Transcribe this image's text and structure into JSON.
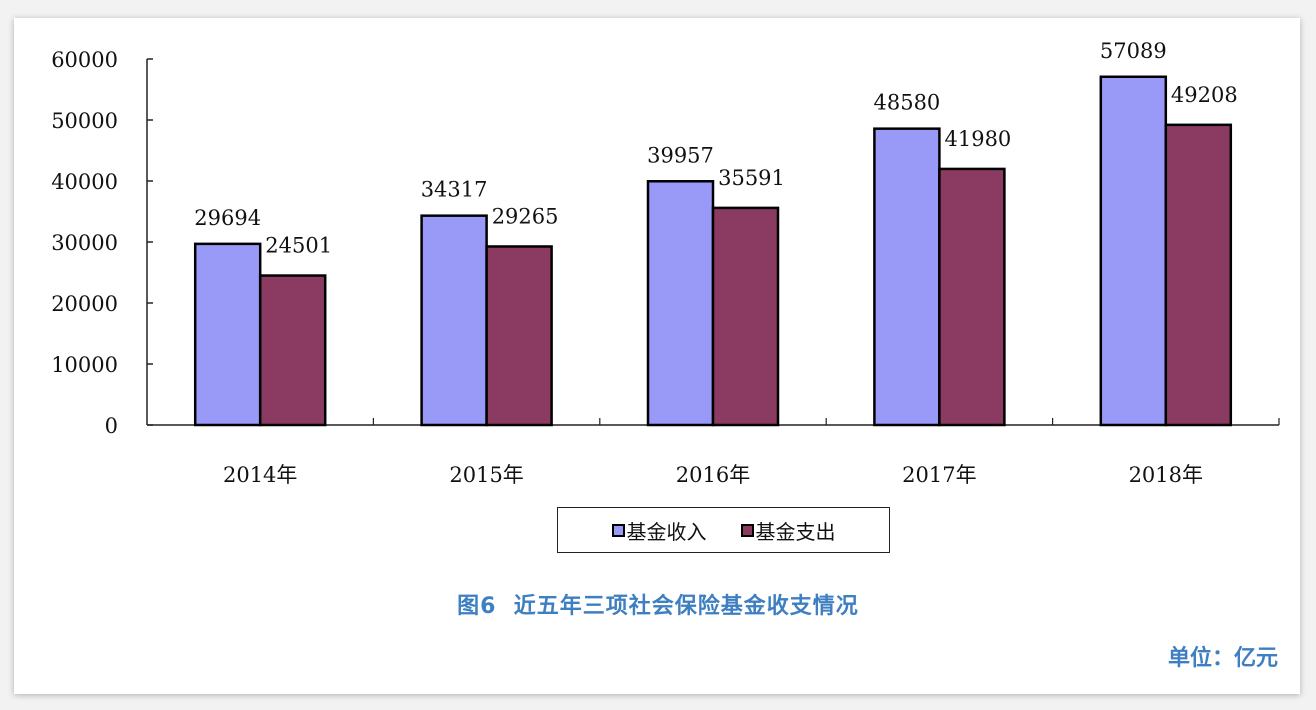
{
  "chart_data": {
    "type": "bar",
    "title": "图6 近五年三项社会保险基金收支情况",
    "unit_note": "单位：亿元",
    "xlabel": "",
    "ylabel": "",
    "categories": [
      "2014年",
      "2015年",
      "2016年",
      "2017年",
      "2018年"
    ],
    "series": [
      {
        "name": "基金收入",
        "color": "#9999f8",
        "values": [
          29694,
          34317,
          39957,
          48580,
          57089
        ]
      },
      {
        "name": "基金支出",
        "color": "#8b3a62",
        "values": [
          24501,
          29265,
          35591,
          41980,
          49208
        ]
      }
    ],
    "ylim": [
      0,
      60000
    ],
    "yticks": [
      0,
      10000,
      20000,
      30000,
      40000,
      50000,
      60000
    ],
    "grid": false,
    "data_labels": true,
    "legend_position": "bottom"
  },
  "caption": "图6  近五年三项社会保险基金收支情况",
  "unit": "单位：亿元",
  "legend": [
    {
      "label": "基金收入",
      "color": "#9999f8"
    },
    {
      "label": "基金支出",
      "color": "#8b3a62"
    }
  ]
}
